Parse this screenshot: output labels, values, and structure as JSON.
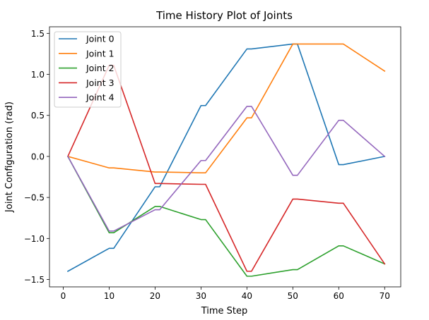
{
  "chart_data": {
    "type": "line",
    "title": "Time History Plot of Joints",
    "xlabel": "Time Step",
    "ylabel": "Joint Configuration (rad)",
    "xlim": [
      -3,
      73.5
    ],
    "ylim": [
      -1.59,
      1.58
    ],
    "xticks": [
      0,
      10,
      20,
      30,
      40,
      50,
      60,
      70
    ],
    "yticks": [
      -1.5,
      -1.0,
      -0.5,
      0.0,
      0.5,
      1.0,
      1.5
    ],
    "ytick_labels": [
      "−1.5",
      "−1.0",
      "−0.5",
      "0.0",
      "0.5",
      "1.0",
      "1.5"
    ],
    "grid": false,
    "legend_position": "top-left",
    "series": [
      {
        "name": "Joint 0",
        "color": "#1f77b4",
        "x": [
          1,
          10,
          11,
          20,
          21,
          30,
          31,
          40,
          41,
          50,
          51,
          60,
          61,
          70
        ],
        "y": [
          -1.4,
          -1.12,
          -1.12,
          -0.37,
          -0.37,
          0.62,
          0.62,
          1.31,
          1.31,
          1.37,
          1.37,
          -0.1,
          -0.1,
          0.0
        ]
      },
      {
        "name": "Joint 1",
        "color": "#ff7f0e",
        "x": [
          1,
          10,
          11,
          20,
          21,
          30,
          31,
          40,
          41,
          50,
          51,
          60,
          61,
          70
        ],
        "y": [
          0.0,
          -0.14,
          -0.14,
          -0.19,
          -0.19,
          -0.2,
          -0.2,
          0.47,
          0.47,
          1.37,
          1.37,
          1.37,
          1.37,
          1.04
        ]
      },
      {
        "name": "Joint 2",
        "color": "#2ca02c",
        "x": [
          1,
          10,
          11,
          20,
          21,
          30,
          31,
          40,
          41,
          50,
          51,
          60,
          61,
          70
        ],
        "y": [
          0.0,
          -0.93,
          -0.93,
          -0.61,
          -0.61,
          -0.77,
          -0.77,
          -1.46,
          -1.46,
          -1.38,
          -1.38,
          -1.09,
          -1.09,
          -1.31
        ]
      },
      {
        "name": "Joint 3",
        "color": "#d62728",
        "x": [
          1,
          10,
          11,
          20,
          21,
          30,
          31,
          40,
          41,
          50,
          51,
          60,
          61,
          70
        ],
        "y": [
          0.0,
          1.11,
          1.11,
          -0.33,
          -0.33,
          -0.34,
          -0.34,
          -1.4,
          -1.4,
          -0.52,
          -0.52,
          -0.57,
          -0.57,
          -1.31
        ]
      },
      {
        "name": "Joint 4",
        "color": "#9467bd",
        "x": [
          1,
          10,
          11,
          20,
          21,
          30,
          31,
          40,
          41,
          50,
          51,
          60,
          61,
          70
        ],
        "y": [
          0.0,
          -0.91,
          -0.91,
          -0.65,
          -0.65,
          -0.05,
          -0.05,
          0.61,
          0.61,
          -0.23,
          -0.23,
          0.44,
          0.44,
          0.0
        ]
      }
    ]
  }
}
